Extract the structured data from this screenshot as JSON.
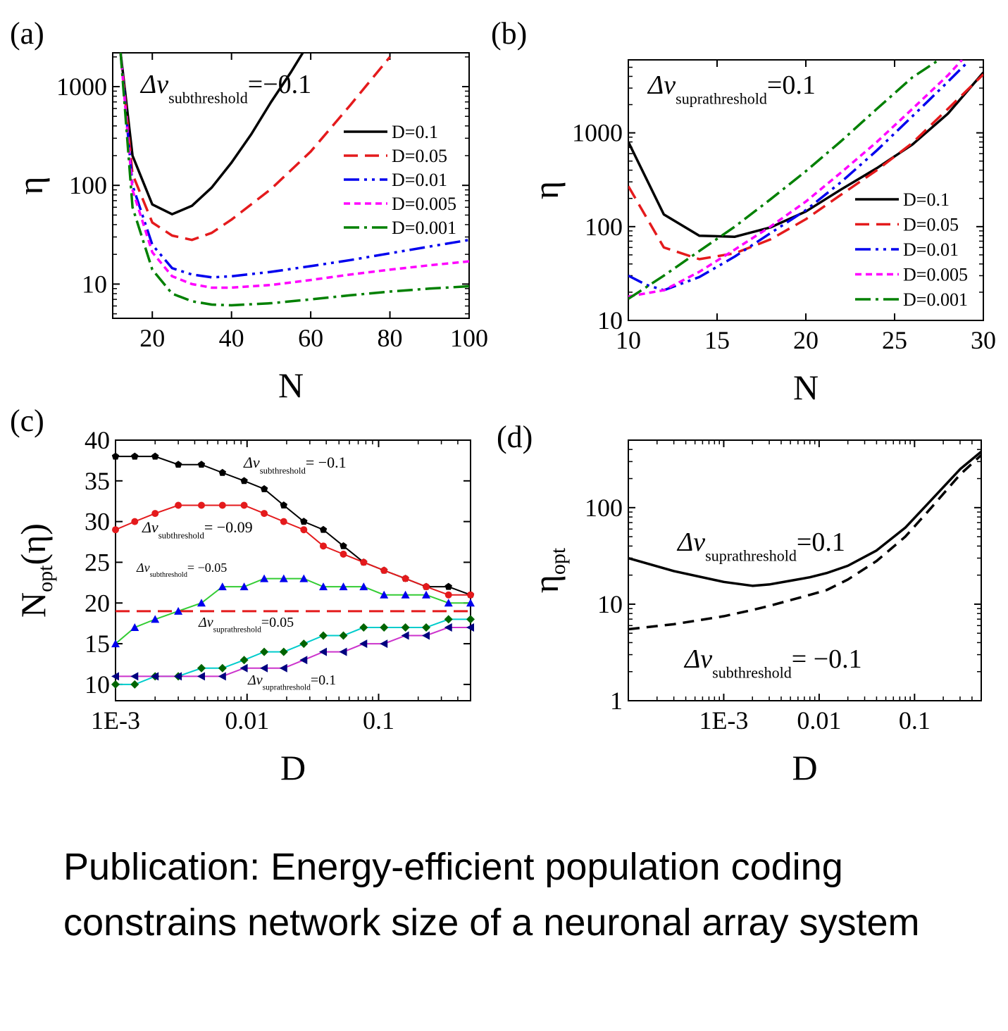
{
  "caption": "Publication: Energy-efficient population coding constrains network size of a neuronal array system",
  "chart_data": [
    {
      "panel": "(a)",
      "type": "line",
      "xlabel": "N",
      "ylabel": "η",
      "xlim": [
        10,
        100
      ],
      "ylim": [
        4.5,
        2200
      ],
      "yscale": "log",
      "xticks": [
        20,
        40,
        60,
        80,
        100
      ],
      "yticks": [
        10,
        100,
        1000
      ],
      "annotation": {
        "sym": "Δv",
        "sub": "subthreshold",
        "val": "=−0.1"
      },
      "legend_position": "right",
      "series": [
        {
          "name": "D=0.1",
          "color": "#000000",
          "dash": "",
          "x": [
            12,
            15,
            20,
            25,
            30,
            35,
            40,
            45,
            50,
            55,
            58
          ],
          "y": [
            2200,
            200,
            64,
            51,
            62,
            95,
            170,
            330,
            700,
            1400,
            2200
          ]
        },
        {
          "name": "D=0.05",
          "color": "#e41a1c",
          "dash": "20 10",
          "x": [
            12,
            15,
            20,
            25,
            30,
            35,
            40,
            50,
            60,
            70,
            80
          ],
          "y": [
            2200,
            130,
            42,
            31,
            28,
            33,
            45,
            92,
            220,
            650,
            2000
          ]
        },
        {
          "name": "D=0.01",
          "color": "#0000ee",
          "dash": "22 7 4 7 4 7",
          "x": [
            12,
            15,
            20,
            25,
            30,
            35,
            40,
            50,
            60,
            70,
            80,
            90,
            100
          ],
          "y": [
            2200,
            100,
            25,
            14.5,
            12.5,
            11.7,
            12,
            13.3,
            15.2,
            17.5,
            20.5,
            24,
            28
          ]
        },
        {
          "name": "D=0.005",
          "color": "#ff00ff",
          "dash": "9 6",
          "x": [
            12,
            15,
            20,
            25,
            30,
            35,
            40,
            50,
            60,
            70,
            80,
            90,
            100
          ],
          "y": [
            2200,
            90,
            21,
            12,
            10,
            9.2,
            9.2,
            9.8,
            11,
            12.5,
            14,
            15.5,
            17
          ]
        },
        {
          "name": "D=0.001",
          "color": "#008000",
          "dash": "22 7 4 7",
          "x": [
            12,
            15,
            20,
            25,
            30,
            35,
            40,
            50,
            60,
            70,
            80,
            90,
            100
          ],
          "y": [
            2200,
            60,
            14,
            8,
            6.7,
            6.2,
            6.1,
            6.4,
            7,
            7.7,
            8.4,
            9,
            9.5
          ]
        }
      ]
    },
    {
      "panel": "(b)",
      "type": "line",
      "xlabel": "N",
      "ylabel": "η",
      "xlim": [
        10,
        30
      ],
      "ylim": [
        10,
        6000
      ],
      "yscale": "log",
      "xticks": [
        10,
        15,
        20,
        25,
        30
      ],
      "yticks": [
        10,
        100,
        1000
      ],
      "annotation": {
        "sym": "Δv",
        "sub": "suprathreshold",
        "val": "=0.1"
      },
      "legend_position": "right",
      "series": [
        {
          "name": "D=0.1",
          "color": "#000000",
          "dash": "",
          "x": [
            10,
            12,
            14,
            16,
            18,
            20,
            22,
            24,
            26,
            28,
            30
          ],
          "y": [
            800,
            135,
            80,
            78,
            98,
            145,
            250,
            420,
            750,
            1600,
            4400
          ]
        },
        {
          "name": "D=0.05",
          "color": "#e41a1c",
          "dash": "20 10",
          "x": [
            10,
            12,
            14,
            16,
            18,
            20,
            22,
            24,
            26,
            28,
            30
          ],
          "y": [
            270,
            60,
            45,
            52,
            73,
            120,
            220,
            400,
            780,
            1800,
            4200
          ]
        },
        {
          "name": "D=0.01",
          "color": "#0000ee",
          "dash": "22 7 4 7 4 7",
          "x": [
            10,
            11,
            12,
            14,
            16,
            18,
            20,
            22,
            24,
            26,
            28,
            29
          ],
          "y": [
            30,
            24,
            21,
            29,
            48,
            85,
            150,
            300,
            650,
            1500,
            3500,
            5400
          ]
        },
        {
          "name": "D=0.005",
          "color": "#ff00ff",
          "dash": "9 6",
          "x": [
            10,
            12,
            14,
            16,
            18,
            20,
            22,
            24,
            26,
            28,
            28.8
          ],
          "y": [
            18,
            21,
            33,
            57,
            100,
            185,
            380,
            800,
            1800,
            4100,
            6000
          ]
        },
        {
          "name": "D=0.001",
          "color": "#008000",
          "dash": "22 7 4 7",
          "x": [
            10,
            12,
            14,
            16,
            18,
            20,
            22,
            24,
            26,
            27.5
          ],
          "y": [
            17,
            30,
            55,
            100,
            195,
            390,
            820,
            1800,
            3900,
            6000
          ]
        }
      ]
    },
    {
      "panel": "(c)",
      "type": "line",
      "xlabel": "D",
      "ylabel": "Nopt(η)",
      "xscale": "log",
      "xlim": [
        0.001,
        0.5
      ],
      "ylim": [
        8,
        40
      ],
      "xticks": [
        0.001,
        0.01,
        0.1
      ],
      "xticklabels": [
        "1E-3",
        "0.01",
        "0.1"
      ],
      "yticks": [
        10,
        15,
        20,
        25,
        30,
        35,
        40
      ],
      "x": [
        0.001,
        0.0014,
        0.002,
        0.003,
        0.0045,
        0.0065,
        0.0095,
        0.0135,
        0.019,
        0.027,
        0.038,
        0.054,
        0.077,
        0.11,
        0.16,
        0.23,
        0.34,
        0.5
      ],
      "series": [
        {
          "sym": "Δv",
          "sub": "subthreshold",
          "val": "= −0.1",
          "line": "#000000",
          "marker": "#000000",
          "shape": "pentagon",
          "y": [
            38,
            38,
            38,
            37,
            37,
            36,
            35,
            34,
            32,
            30,
            29,
            27,
            25,
            24,
            23,
            22,
            22,
            21
          ]
        },
        {
          "sym": "Δv",
          "sub": "subthreshold",
          "val": "= −0.09",
          "line": "#e41a1c",
          "marker": "#e41a1c",
          "shape": "circle",
          "y": [
            29,
            30,
            31,
            32,
            32,
            32,
            32,
            31,
            30,
            29,
            27,
            26,
            25,
            24,
            23,
            22,
            21,
            21
          ]
        },
        {
          "sym": "Δv",
          "sub": "subthreshold",
          "val": "= −0.05",
          "line": "#33cc33",
          "marker": "#0000ee",
          "shape": "triangle-up",
          "y": [
            15,
            17,
            18,
            19,
            20,
            22,
            22,
            23,
            23,
            23,
            22,
            22,
            22,
            21,
            21,
            21,
            20,
            20
          ]
        },
        {
          "sym": "Δv",
          "sub": "suprathreshold",
          "val": "=0.05",
          "line": "#e41a1c",
          "dash": "20 10",
          "constant": 19
        },
        {
          "sym": "Δv",
          "sub": "suprathreshold",
          "val": "=0.1",
          "line": "#00cccc",
          "marker": "#006400",
          "shape": "diamond",
          "y": [
            10,
            10,
            11,
            11,
            12,
            12,
            13,
            14,
            14,
            15,
            16,
            16,
            17,
            17,
            17,
            17,
            18,
            18
          ]
        },
        {
          "line": "#cc33cc",
          "marker": "#000080",
          "shape": "triangle-left",
          "y": [
            11,
            11,
            11,
            11,
            11,
            11,
            12,
            12,
            12,
            13,
            14,
            14,
            15,
            15,
            16,
            16,
            17,
            17
          ]
        }
      ]
    },
    {
      "panel": "(d)",
      "type": "line",
      "xlabel": "D",
      "ylabel": "ηopt",
      "xscale": "log",
      "yscale": "log",
      "xlim": [
        0.0001,
        0.5
      ],
      "ylim": [
        1,
        500
      ],
      "xticks": [
        0.001,
        0.01,
        0.1
      ],
      "xticklabels": [
        "1E-3",
        "0.01",
        "0.1"
      ],
      "yticks": [
        1,
        10,
        100
      ],
      "series": [
        {
          "sym": "Δv",
          "sub": "suprathreshold",
          "val": "=0.1",
          "color": "#000000",
          "dash": "",
          "x": [
            0.0001,
            0.0003,
            0.001,
            0.002,
            0.003,
            0.005,
            0.008,
            0.012,
            0.02,
            0.04,
            0.08,
            0.15,
            0.3,
            0.5
          ],
          "y": [
            30,
            22,
            17,
            15.5,
            16,
            17.5,
            19,
            21,
            25,
            36,
            62,
            120,
            250,
            380
          ]
        },
        {
          "sym": "Δv",
          "sub": "subthreshold",
          "val": "= −0.1",
          "color": "#000000",
          "dash": "16 10",
          "x": [
            0.0001,
            0.0003,
            0.001,
            0.002,
            0.003,
            0.005,
            0.008,
            0.012,
            0.02,
            0.04,
            0.08,
            0.15,
            0.3,
            0.5
          ],
          "y": [
            5.5,
            6.2,
            7.5,
            8.7,
            9.6,
            11,
            12.5,
            14,
            18,
            28,
            50,
            100,
            220,
            350
          ]
        }
      ]
    }
  ]
}
